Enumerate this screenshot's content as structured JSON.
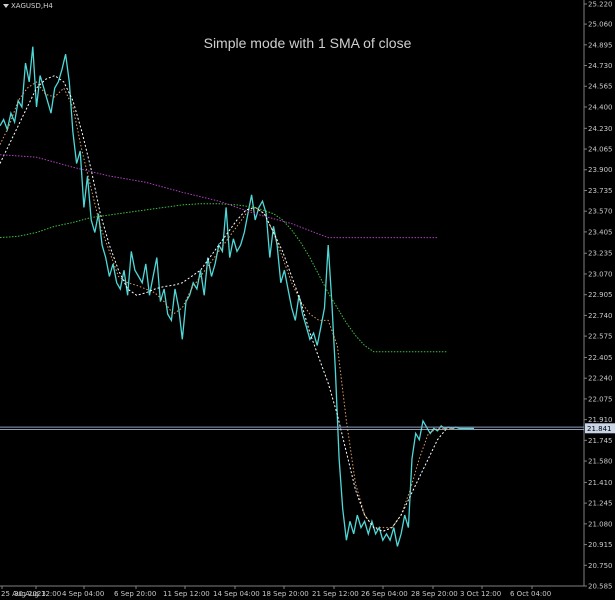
{
  "symbol_label": "XAGUSD,H4",
  "chart_data": {
    "type": "line",
    "title": "Simple mode with 1 SMA of close",
    "grid": false,
    "ylim": [
      20.585,
      25.22
    ],
    "yticks": [
      "25.220",
      "25.060",
      "24.895",
      "24.730",
      "24.565",
      "24.400",
      "24.230",
      "24.065",
      "23.900",
      "23.735",
      "23.570",
      "23.405",
      "23.235",
      "23.070",
      "22.905",
      "22.740",
      "22.575",
      "22.405",
      "22.240",
      "22.075",
      "21.910",
      "21.745",
      "21.580",
      "21.410",
      "21.245",
      "21.080",
      "20.915",
      "20.750",
      "20.585"
    ],
    "xtick_labels": [
      "25 Aug 2023",
      "30 Aug 12:00",
      "4 Sep 04:00",
      "6 Sep 20:00",
      "11 Sep 12:00",
      "14 Sep 04:00",
      "18 Sep 20:00",
      "21 Sep 12:00",
      "26 Sep 04:00",
      "28 Sep 20:00",
      "3 Oct 12:00",
      "6 Oct 04:00"
    ],
    "current_price_label": "21.841",
    "current_price": 21.841,
    "colors": {
      "price": "#4fd8d8",
      "sma_fast": "#e0a060",
      "sma_slow": "#ffffff",
      "trend_green": "#3fbf3f",
      "trend_purple": "#b040c0",
      "price_line": "#8aa0c0",
      "axis": "#808080"
    },
    "series": [
      {
        "key": "price",
        "x": [
          0,
          2,
          4,
          6,
          8,
          10,
          12,
          14,
          16,
          18,
          20,
          22,
          24,
          26,
          28,
          30,
          32,
          34,
          36,
          38,
          40,
          42,
          44,
          46,
          48,
          50,
          52,
          54,
          56,
          58,
          60,
          62,
          64,
          66,
          68,
          70,
          72,
          74,
          76,
          78,
          80,
          82,
          84,
          86,
          88,
          90,
          92,
          94,
          96,
          98,
          100,
          102,
          104,
          106,
          108,
          110,
          112,
          114,
          116,
          118,
          120,
          122,
          124,
          126,
          128,
          130,
          132,
          134,
          136,
          138,
          140,
          142,
          144,
          146,
          148,
          150,
          152,
          154,
          156,
          158,
          160,
          162,
          164,
          166,
          168,
          170,
          172,
          174,
          176,
          178,
          180,
          182,
          184,
          186,
          188,
          190,
          192,
          194,
          196,
          198,
          200,
          202,
          204,
          206,
          208,
          210,
          212,
          214,
          216,
          218,
          220,
          222,
          224,
          226,
          228,
          230,
          232,
          234,
          236,
          238,
          240,
          242,
          244,
          246,
          248,
          250,
          252,
          254,
          256,
          258,
          260
        ],
        "values": [
          24.25,
          24.3,
          24.22,
          24.35,
          24.28,
          24.45,
          24.4,
          24.75,
          24.6,
          24.88,
          24.4,
          24.65,
          24.55,
          24.45,
          24.35,
          24.55,
          24.6,
          24.7,
          24.82,
          24.6,
          24.2,
          23.95,
          24.05,
          23.6,
          23.85,
          23.5,
          23.4,
          23.55,
          23.3,
          23.2,
          23.05,
          23.15,
          23.0,
          22.95,
          23.1,
          22.9,
          23.25,
          23.1,
          23.05,
          23.0,
          23.15,
          22.9,
          23.05,
          23.2,
          22.85,
          22.95,
          22.75,
          22.7,
          22.95,
          22.8,
          22.55,
          22.85,
          22.9,
          23.0,
          22.95,
          23.1,
          22.9,
          23.2,
          23.05,
          23.15,
          23.3,
          23.25,
          23.6,
          23.2,
          23.35,
          23.25,
          23.3,
          23.4,
          23.55,
          23.7,
          23.5,
          23.6,
          23.65,
          23.55,
          23.2,
          23.45,
          23.3,
          23.0,
          23.1,
          22.95,
          22.8,
          22.7,
          22.9,
          22.75,
          22.65,
          22.55,
          22.6,
          22.5,
          22.65,
          22.8,
          23.3,
          22.85,
          22.3,
          21.6,
          21.2,
          20.95,
          21.1,
          21.0,
          21.15,
          21.05,
          21.1,
          21.0,
          21.1,
          21.0,
          21.05,
          20.95,
          21.0,
          20.95,
          21.05,
          20.9,
          21.0,
          21.15,
          21.05,
          21.6,
          21.8,
          21.75,
          21.9,
          21.85,
          21.8,
          21.84,
          21.82,
          21.86,
          21.84,
          21.85,
          21.84,
          21.85,
          21.84,
          21.84,
          21.84,
          21.84,
          21.84
        ]
      },
      {
        "key": "sma_fast",
        "x": [
          0,
          5,
          10,
          15,
          20,
          25,
          30,
          35,
          40,
          45,
          50,
          55,
          60,
          65,
          70,
          75,
          80,
          85,
          90,
          95,
          100,
          105,
          110,
          115,
          120,
          125,
          130,
          135,
          140,
          145,
          150,
          155,
          160,
          165,
          170,
          175,
          180,
          185,
          190,
          195,
          200,
          205,
          210,
          215,
          220,
          225,
          230,
          235,
          240,
          245,
          250
        ],
        "values": [
          24.1,
          24.25,
          24.45,
          24.55,
          24.6,
          24.5,
          24.48,
          24.55,
          24.4,
          24.05,
          23.75,
          23.45,
          23.25,
          23.05,
          23.0,
          22.98,
          22.95,
          22.92,
          22.85,
          22.75,
          22.8,
          22.95,
          23.05,
          23.15,
          23.25,
          23.35,
          23.45,
          23.55,
          23.6,
          23.55,
          23.4,
          23.2,
          23.0,
          22.85,
          22.75,
          22.7,
          22.7,
          22.5,
          21.9,
          21.4,
          21.15,
          21.05,
          21.05,
          21.05,
          21.15,
          21.35,
          21.6,
          21.8,
          21.84,
          21.84,
          21.84
        ]
      },
      {
        "key": "sma_slow",
        "x": [
          0,
          5,
          10,
          15,
          20,
          25,
          30,
          35,
          40,
          45,
          50,
          55,
          60,
          65,
          70,
          75,
          80,
          85,
          90,
          95,
          100,
          105,
          110,
          115,
          120,
          125,
          130,
          135,
          140,
          145,
          150,
          155,
          160,
          165,
          170,
          175,
          180,
          185,
          190,
          195,
          200,
          205,
          210,
          215,
          220,
          225,
          230,
          235,
          240,
          245
        ],
        "values": [
          23.95,
          24.1,
          24.25,
          24.4,
          24.55,
          24.62,
          24.65,
          24.6,
          24.45,
          24.2,
          23.9,
          23.55,
          23.3,
          23.1,
          22.95,
          22.9,
          22.92,
          22.95,
          22.97,
          22.98,
          23.0,
          23.05,
          23.1,
          23.2,
          23.3,
          23.4,
          23.5,
          23.58,
          23.6,
          23.55,
          23.4,
          23.25,
          23.05,
          22.85,
          22.6,
          22.4,
          22.2,
          21.95,
          21.65,
          21.35,
          21.15,
          21.05,
          21.02,
          21.05,
          21.15,
          21.3,
          21.45,
          21.6,
          21.75,
          21.84
        ]
      },
      {
        "key": "trend_green",
        "x": [
          0,
          10,
          20,
          30,
          40,
          50,
          60,
          70,
          80,
          90,
          100,
          110,
          120,
          130,
          140,
          150,
          155,
          160,
          165,
          170,
          175,
          180,
          185,
          190,
          195,
          200,
          205,
          210,
          215,
          220,
          225,
          230,
          235,
          240,
          245
        ],
        "values": [
          23.36,
          23.37,
          23.4,
          23.45,
          23.48,
          23.52,
          23.54,
          23.56,
          23.58,
          23.6,
          23.62,
          23.63,
          23.63,
          23.62,
          23.6,
          23.55,
          23.5,
          23.42,
          23.32,
          23.2,
          23.06,
          22.92,
          22.8,
          22.68,
          22.58,
          22.5,
          22.45,
          22.45,
          22.45,
          22.45,
          22.45,
          22.45,
          22.45,
          22.45,
          22.45
        ]
      },
      {
        "key": "trend_purple",
        "x": [
          0,
          20,
          40,
          60,
          80,
          100,
          120,
          140,
          160,
          180,
          200,
          220,
          240
        ],
        "values": [
          24.02,
          24.0,
          23.92,
          23.85,
          23.8,
          23.72,
          23.65,
          23.55,
          23.47,
          23.36,
          23.36,
          23.36,
          23.36
        ]
      }
    ]
  }
}
